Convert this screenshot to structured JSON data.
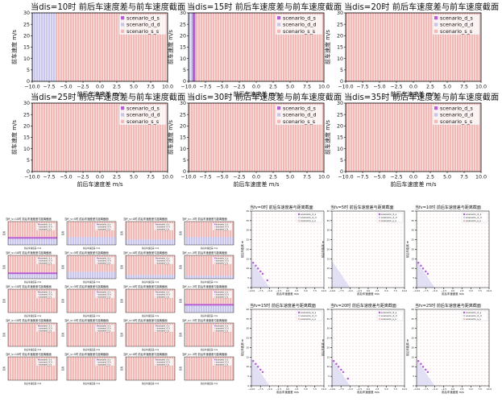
{
  "legend_labels": [
    "scenario_d_s",
    "scenario_d_d",
    "scenario_s_s"
  ],
  "colors": {
    "d_s": "#b45fd6",
    "d_d": "#c8c6ea",
    "s_s": "#f2b9b6",
    "frame": "#000000",
    "text": "#111111"
  },
  "chart_data": [
    {
      "type": "heatmap",
      "group": "top",
      "title": "当dis=10时 前后车速度差与前车速度截面",
      "xlabel": "前后车速度差 m/s",
      "ylabel": "前车速度 m/s",
      "xlim": [
        -10,
        10
      ],
      "ylim": [
        0,
        30
      ],
      "xticks": [
        "−10.0",
        "−7.5",
        "−5.0",
        "−2.5",
        "0.0",
        "2.5",
        "5.0",
        "7.5",
        "10.0"
      ],
      "yticks": [
        "0",
        "5",
        "10",
        "15",
        "20",
        "25",
        "30"
      ],
      "regions": [
        {
          "series": "d_d",
          "x": [
            -10,
            -6.5
          ],
          "y": [
            0,
            30
          ]
        }
      ]
    },
    {
      "type": "heatmap",
      "group": "top",
      "title": "当dis=15时 前后车速度差与前车速度截面",
      "xlabel": "前后车速度差 m/s",
      "ylabel": "前车速度 m/s",
      "xlim": [
        -10,
        10
      ],
      "ylim": [
        0,
        30
      ],
      "xticks": [
        "−10.0",
        "−7.5",
        "−5.0",
        "−2.5",
        "0.0",
        "2.5",
        "5.0",
        "7.5",
        "10.0"
      ],
      "yticks": [
        "0",
        "5",
        "10",
        "15",
        "20",
        "25",
        "30"
      ],
      "regions": [
        {
          "series": "d_d",
          "x": [
            -10,
            -9.4
          ],
          "y": [
            0,
            30
          ]
        },
        {
          "series": "d_s",
          "x": [
            -9.4,
            -9.0
          ],
          "y": [
            0,
            30
          ]
        }
      ]
    },
    {
      "type": "heatmap",
      "group": "top",
      "title": "当dis=20时 前后车速度差与前车速度截面",
      "xlabel": "前后车速度差 m/s",
      "ylabel": "前车速度 m/s",
      "xlim": [
        -10,
        10
      ],
      "ylim": [
        0,
        30
      ],
      "xticks": [
        "−10.0",
        "−7.5",
        "−5.0",
        "−2.5",
        "0.0",
        "2.5",
        "5.0",
        "7.5",
        "10.0"
      ],
      "yticks": [
        "0",
        "5",
        "10",
        "15",
        "20",
        "25",
        "30"
      ],
      "regions": []
    },
    {
      "type": "heatmap",
      "group": "top",
      "title": "当dis=25时 前后车速度差与前车速度截面",
      "xlabel": "前后车速度差 m/s",
      "ylabel": "前车速度 m/s",
      "xlim": [
        -10,
        10
      ],
      "ylim": [
        0,
        30
      ],
      "xticks": [
        "−10.0",
        "−7.5",
        "−5.0",
        "−2.5",
        "0.0",
        "2.5",
        "5.0",
        "7.5",
        "10.0"
      ],
      "yticks": [
        "0",
        "5",
        "10",
        "15",
        "20",
        "25",
        "30"
      ],
      "regions": []
    },
    {
      "type": "heatmap",
      "group": "top",
      "title": "当dis=30时 前后车速度差与前车速度截面",
      "xlabel": "前后车速度差 m/s",
      "ylabel": "前车速度 m/s",
      "xlim": [
        -10,
        10
      ],
      "ylim": [
        0,
        30
      ],
      "xticks": [
        "−10.0",
        "−7.5",
        "−5.0",
        "−2.5",
        "0.0",
        "2.5",
        "5.0",
        "7.5",
        "10.0"
      ],
      "yticks": [
        "0",
        "5",
        "10",
        "15",
        "20",
        "25",
        "30"
      ],
      "regions": []
    },
    {
      "type": "heatmap",
      "group": "top",
      "title": "当dis=35时 前后车速度差与前车速度截面",
      "xlabel": "前后车速度差 m/s",
      "ylabel": "前车速度 m/s",
      "xlim": [
        -10,
        10
      ],
      "ylim": [
        0,
        30
      ],
      "xticks": [
        "−10.0",
        "−7.5",
        "−5.0",
        "−2.5",
        "0.0",
        "2.5",
        "5.0",
        "7.5",
        "10.0"
      ],
      "yticks": [
        "0",
        "5",
        "10",
        "15",
        "20",
        "25",
        "30"
      ],
      "regions": []
    },
    {
      "type": "heatmap",
      "group": "left",
      "title": "当ff_v=10时 前后车速度差与距离截面",
      "xlabel": "前后车速度差 m/s",
      "ylabel": "距离",
      "xlim": [
        -10,
        10
      ],
      "ylim": [
        0,
        30
      ],
      "regions": [
        {
          "series": "d_d",
          "x": [
            -10,
            10
          ],
          "y": [
            0,
            8
          ]
        },
        {
          "series": "d_s",
          "x": [
            -10,
            10
          ],
          "y": [
            8,
            10
          ]
        }
      ]
    },
    {
      "type": "heatmap",
      "group": "left",
      "title": "当ff_v=5时 前后车速度差与距离截面",
      "xlabel": "前后车速度差 m/s",
      "ylabel": "距离",
      "xlim": [
        -10,
        10
      ],
      "ylim": [
        0,
        30
      ],
      "regions": [
        {
          "series": "d_d",
          "x": [
            -10,
            10
          ],
          "y": [
            0,
            10
          ]
        }
      ]
    },
    {
      "type": "heatmap",
      "group": "left",
      "title": "当ff_v=0时 前后车速度差与距离截面",
      "xlabel": "前后车速度差 m/s",
      "ylabel": "距离",
      "xlim": [
        -10,
        10
      ],
      "ylim": [
        0,
        30
      ],
      "regions": [
        {
          "series": "d_d",
          "x": [
            -10,
            10
          ],
          "y": [
            0,
            7
          ]
        }
      ]
    },
    {
      "type": "heatmap",
      "group": "left",
      "title": "当ff_v=-5时 前后车速度差与距离截面",
      "xlabel": "前后车速度差 m/s",
      "ylabel": "距离",
      "xlim": [
        -10,
        10
      ],
      "ylim": [
        0,
        30
      ],
      "regions": [
        {
          "series": "d_d",
          "x": [
            -10,
            10
          ],
          "y": [
            0,
            10
          ]
        }
      ]
    },
    {
      "type": "heatmap",
      "group": "left",
      "title": "当ff_v=10时 前后车速度差与距离截面",
      "xlabel": "前后车速度差 m/s",
      "ylabel": "距离",
      "xlim": [
        -10,
        10
      ],
      "ylim": [
        0,
        30
      ],
      "regions": [
        {
          "series": "d_d",
          "x": [
            -10,
            10
          ],
          "y": [
            0,
            6
          ]
        },
        {
          "series": "d_s",
          "x": [
            -10,
            10
          ],
          "y": [
            6,
            8
          ]
        }
      ]
    },
    {
      "type": "heatmap",
      "group": "left",
      "title": "当ff_v=5时 前后车速度差与距离截面",
      "xlabel": "前后车速度差 m/s",
      "ylabel": "距离",
      "xlim": [
        -10,
        10
      ],
      "ylim": [
        0,
        30
      ],
      "regions": [
        {
          "series": "d_d",
          "x": [
            -10,
            10
          ],
          "y": [
            0,
            9
          ]
        }
      ]
    },
    {
      "type": "heatmap",
      "group": "left",
      "title": "当ff_v=0时 前后车速度差与距离截面",
      "xlabel": "前后车速度差 m/s",
      "ylabel": "距离",
      "xlim": [
        -10,
        10
      ],
      "ylim": [
        0,
        30
      ],
      "regions": [
        {
          "series": "d_d",
          "x": [
            -10,
            10
          ],
          "y": [
            0,
            5
          ]
        }
      ]
    },
    {
      "type": "heatmap",
      "group": "left",
      "title": "当ff_v=-5时 前后车速度差与距离截面",
      "xlabel": "前后车速度差 m/s",
      "ylabel": "距离",
      "xlim": [
        -10,
        10
      ],
      "ylim": [
        0,
        30
      ],
      "regions": [
        {
          "series": "d_d",
          "x": [
            -10,
            10
          ],
          "y": [
            0,
            4
          ]
        }
      ]
    },
    {
      "type": "heatmap",
      "group": "left",
      "title": "当ff_v=10时 前后车速度差与距离截面",
      "xlabel": "前后车速度差 m/s",
      "ylabel": "距离",
      "xlim": [
        -10,
        10
      ],
      "ylim": [
        0,
        30
      ],
      "regions": []
    },
    {
      "type": "heatmap",
      "group": "left",
      "title": "当ff_v=5时 前后车速度差与距离截面",
      "xlabel": "前后车速度差 m/s",
      "ylabel": "距离",
      "xlim": [
        -10,
        10
      ],
      "ylim": [
        0,
        30
      ],
      "regions": []
    },
    {
      "type": "heatmap",
      "group": "left",
      "title": "当ff_v=0时 前后车速度差与距离截面",
      "xlabel": "前后车速度差 m/s",
      "ylabel": "距离",
      "xlim": [
        -10,
        10
      ],
      "ylim": [
        0,
        30
      ],
      "regions": []
    },
    {
      "type": "heatmap",
      "group": "left",
      "title": "当ff_v=-5时 前后车速度差与距离截面",
      "xlabel": "前后车速度差 m/s",
      "ylabel": "距离",
      "xlim": [
        -10,
        10
      ],
      "ylim": [
        0,
        30
      ],
      "regions": [
        {
          "series": "d_d",
          "x": [
            -10,
            10
          ],
          "y": [
            0,
            9
          ]
        },
        {
          "series": "d_s",
          "x": [
            -10,
            10
          ],
          "y": [
            9,
            11
          ]
        }
      ]
    },
    {
      "type": "heatmap",
      "group": "left",
      "title": "当ff_v=10时 前后车速度差与距离截面",
      "xlabel": "前后车速度差 m/s",
      "ylabel": "距离",
      "xlim": [
        -10,
        10
      ],
      "ylim": [
        0,
        30
      ],
      "regions": []
    },
    {
      "type": "heatmap",
      "group": "left",
      "title": "当ff_v=5时 前后车速度差与距离截面",
      "xlabel": "前后车速度差 m/s",
      "ylabel": "距离",
      "xlim": [
        -10,
        10
      ],
      "ylim": [
        0,
        30
      ],
      "regions": []
    },
    {
      "type": "heatmap",
      "group": "left",
      "title": "当ff_v=0时 前后车速度差与距离截面",
      "xlabel": "前后车速度差 m/s",
      "ylabel": "距离",
      "xlim": [
        -10,
        10
      ],
      "ylim": [
        0,
        30
      ],
      "regions": []
    },
    {
      "type": "heatmap",
      "group": "left",
      "title": "当ff_v=-5时 前后车速度差与距离截面",
      "xlabel": "前后车速度差 m/s",
      "ylabel": "距离",
      "xlim": [
        -10,
        10
      ],
      "ylim": [
        0,
        30
      ],
      "regions": []
    },
    {
      "type": "heatmap",
      "group": "left",
      "title": "当ff_v=10时 前后车速度差与距离截面",
      "xlabel": "前后车速度差 m/s",
      "ylabel": "距离",
      "xlim": [
        -10,
        10
      ],
      "ylim": [
        0,
        30
      ],
      "regions": []
    },
    {
      "type": "heatmap",
      "group": "left",
      "title": "当ff_v=5时 前后车速度差与距离截面",
      "xlabel": "前后车速度差 m/s",
      "ylabel": "距离",
      "xlim": [
        -10,
        10
      ],
      "ylim": [
        0,
        30
      ],
      "regions": []
    },
    {
      "type": "heatmap",
      "group": "left",
      "title": "当ff_v=0时 前后车速度差与距离截面",
      "xlabel": "前后车速度差 m/s",
      "ylabel": "距离",
      "xlim": [
        -10,
        10
      ],
      "ylim": [
        0,
        30
      ],
      "regions": []
    },
    {
      "type": "heatmap",
      "group": "left",
      "title": "当ff_v=-5时 前后车速度差与距离截面",
      "xlabel": "前后车速度差 m/s",
      "ylabel": "距离",
      "xlim": [
        -10,
        10
      ],
      "ylim": [
        0,
        30
      ],
      "regions": []
    },
    {
      "type": "scatter",
      "group": "right",
      "title": "当fv=0时 前后车速度差与距离截面",
      "xlabel": "前后车速度差 m/s",
      "ylabel": "前后车距离 m",
      "xlim": [
        -10,
        10
      ],
      "ylim": [
        0,
        40
      ],
      "xticks": [
        "−10.0",
        "−7.5",
        "−5.0",
        "−2.5",
        "0.0",
        "2.5",
        "5.0",
        "7.5",
        "10.0"
      ],
      "yticks": [
        "0",
        "5",
        "10",
        "15",
        "20",
        "25",
        "30",
        "35",
        "40"
      ],
      "triangle": [
        [
          -10,
          0
        ],
        [
          -10,
          14
        ],
        [
          -5,
          0
        ]
      ],
      "series": [
        {
          "name": "scenario_d_s",
          "points": [
            [
              -9.5,
              13
            ],
            [
              -8.8,
              11.5
            ],
            [
              -8.2,
              10
            ],
            [
              -7.5,
              8.5
            ],
            [
              -6.9,
              7.2
            ],
            [
              -5.6,
              3.8
            ]
          ]
        }
      ]
    },
    {
      "type": "scatter",
      "group": "right",
      "title": "当fv=5时 前后车速度差与距离截面",
      "xlabel": "前后车速度差 m/s",
      "ylabel": "前后车距离 m",
      "xlim": [
        -10,
        10
      ],
      "ylim": [
        0,
        40
      ],
      "xticks": [
        "−10.0",
        "−7.5",
        "−5.0",
        "−2.5",
        "0.0",
        "2.5",
        "5.0",
        "7.5",
        "10.0"
      ],
      "yticks": [
        "0",
        "5",
        "10",
        "15",
        "20",
        "25",
        "30",
        "35",
        "40"
      ],
      "triangle": [
        [
          -10,
          0
        ],
        [
          -10,
          14
        ],
        [
          -5,
          0
        ]
      ],
      "series": [
        {
          "name": "scenario_d_s",
          "points": []
        }
      ]
    },
    {
      "type": "scatter",
      "group": "right",
      "title": "当fv=10时 前后车速度差与距离截面",
      "xlabel": "前后车速度差 m/s",
      "ylabel": "前后车距离 m",
      "xlim": [
        -10,
        10
      ],
      "ylim": [
        0,
        40
      ],
      "xticks": [
        "−10.0",
        "−7.5",
        "−5.0",
        "−2.5",
        "0.0",
        "2.5",
        "5.0",
        "7.5",
        "10.0"
      ],
      "yticks": [
        "0",
        "5",
        "10",
        "15",
        "20",
        "25",
        "30",
        "35",
        "40"
      ],
      "triangle": [
        [
          -10,
          0
        ],
        [
          -10,
          14
        ],
        [
          -5,
          0
        ]
      ],
      "series": [
        {
          "name": "scenario_d_s",
          "points": [
            [
              -9.5,
              13
            ],
            [
              -8.8,
              11.5
            ],
            [
              -8.2,
              10
            ],
            [
              -7.5,
              8.5
            ],
            [
              -6.9,
              7.2
            ]
          ]
        }
      ]
    },
    {
      "type": "scatter",
      "group": "right",
      "title": "当fv=15时 前后车速度差与距离截面",
      "xlabel": "前后车速度差 m/s",
      "ylabel": "前后车距离 m",
      "xlim": [
        -10,
        10
      ],
      "ylim": [
        0,
        40
      ],
      "xticks": [
        "−10.0",
        "−7.5",
        "−5.0",
        "−2.5",
        "0.0",
        "2.5",
        "5.0",
        "7.5",
        "10.0"
      ],
      "yticks": [
        "0",
        "5",
        "10",
        "15",
        "20",
        "25",
        "30",
        "35",
        "40"
      ],
      "triangle": [
        [
          -10,
          0
        ],
        [
          -10,
          14
        ],
        [
          -5,
          0
        ]
      ],
      "series": [
        {
          "name": "scenario_d_s",
          "points": [
            [
              -9.5,
              13
            ],
            [
              -8.8,
              11.5
            ],
            [
              -8.2,
              10
            ],
            [
              -7.5,
              8.5
            ],
            [
              -6.9,
              7.2
            ]
          ]
        }
      ]
    },
    {
      "type": "scatter",
      "group": "right",
      "title": "当fv=20时 前后车速度差与距离截面",
      "xlabel": "前后车速度差 m/s",
      "ylabel": "前后车距离 m",
      "xlim": [
        -10,
        10
      ],
      "ylim": [
        0,
        40
      ],
      "xticks": [
        "−10.0",
        "−7.5",
        "−5.0",
        "−2.5",
        "0.0",
        "2.5",
        "5.0",
        "7.5",
        "10.0"
      ],
      "yticks": [
        "0",
        "5",
        "10",
        "15",
        "20",
        "25",
        "30",
        "35",
        "40"
      ],
      "triangle": [
        [
          -10,
          0
        ],
        [
          -10,
          14
        ],
        [
          -5,
          0
        ]
      ],
      "series": [
        {
          "name": "scenario_d_s",
          "points": [
            [
              -9.5,
              13
            ],
            [
              -8.8,
              11.5
            ],
            [
              -8.2,
              10
            ],
            [
              -7.5,
              8.5
            ],
            [
              -6.9,
              7.2
            ],
            [
              -5.6,
              3.8
            ]
          ]
        }
      ]
    },
    {
      "type": "scatter",
      "group": "right",
      "title": "当fv=25时 前后车速度差与距离截面",
      "xlabel": "前后车速度差 m/s",
      "ylabel": "前后车距离 m",
      "xlim": [
        -10,
        10
      ],
      "ylim": [
        0,
        40
      ],
      "xticks": [
        "−10.0",
        "−7.5",
        "−5.0",
        "−2.5",
        "0.0",
        "2.5",
        "5.0",
        "7.5",
        "10.0"
      ],
      "yticks": [
        "0",
        "5",
        "10",
        "15",
        "20",
        "25",
        "30",
        "35",
        "40"
      ],
      "triangle": [
        [
          -10,
          0
        ],
        [
          -10,
          14
        ],
        [
          -5,
          0
        ]
      ],
      "series": [
        {
          "name": "scenario_d_s",
          "points": [
            [
              -9.5,
              13
            ],
            [
              -8.8,
              11.5
            ],
            [
              -8.2,
              10
            ],
            [
              -7.5,
              8.5
            ],
            [
              -6.9,
              7.2
            ]
          ]
        }
      ]
    }
  ]
}
